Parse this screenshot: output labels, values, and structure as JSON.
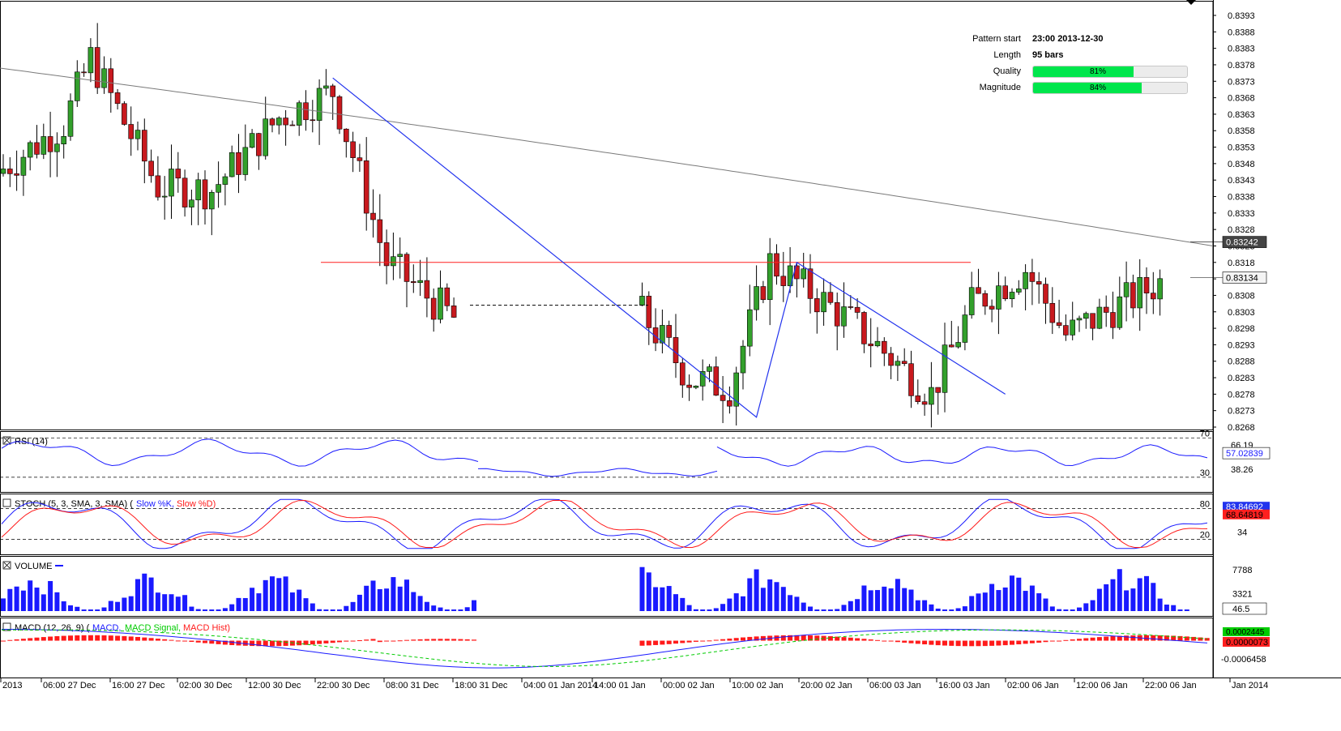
{
  "pattern_info": {
    "pattern_start_label": "Pattern start",
    "pattern_start_value": "23:00 2013-12-30",
    "length_label": "Length",
    "length_value": "95 bars",
    "quality_label": "Quality",
    "quality_text": "81%",
    "quality": 0.81,
    "magnitude_label": "Magnitude",
    "magnitude_text": "84%",
    "magnitude": 0.84
  },
  "colors": {
    "bull": "#33a02c",
    "bear": "#c8191e",
    "ma": "#7a7a7a",
    "pattern_line": "#2233ee",
    "resistance": "#ff2020",
    "rsi": "#1a1aff",
    "stoch_k": "#1a1aff",
    "stoch_d": "#ff1a1a",
    "volume": "#1a1aff",
    "macd": "#1a1aff",
    "macd_signal": "#00cc00",
    "macd_hist": "#ff1a1a"
  },
  "chart_data": [
    {
      "type": "candlestick",
      "title": "",
      "price_labels": [
        "0.8393",
        "0.8388",
        "0.8383",
        "0.8378",
        "0.8373",
        "0.8368",
        "0.8363",
        "0.8358",
        "0.8353",
        "0.8348",
        "0.8343",
        "0.8338",
        "0.8333",
        "0.8328",
        "0.8323",
        "0.8318",
        "0.8313",
        "0.8308",
        "0.8303",
        "0.8298",
        "0.8293",
        "0.8288",
        "0.8283",
        "0.8278",
        "0.8273",
        "0.8268"
      ],
      "ylim": [
        0.8266,
        0.8396
      ],
      "x_labels": [
        "2013",
        "06:00 27 Dec",
        "16:00 27 Dec",
        "02:00 30 Dec",
        "12:00 30 Dec",
        "22:00 30 Dec",
        "08:00 31 Dec",
        "18:00 31 Dec",
        "04:00 01 Jan 2014",
        "14:00 01 Jan",
        "00:00 02 Jan",
        "10:00 02 Jan",
        "20:00 02 Jan",
        "06:00 03 Jan",
        "16:00 03 Jan",
        "02:00 06 Jan",
        "12:00 06 Jan",
        "22:00 06 Jan",
        "Jan 2014"
      ],
      "ma_label": "0.83242",
      "ma_value": 0.83242,
      "last_label": "0.83134",
      "last_value": 0.83134,
      "ohlc_segments": [
        {
          "open": 0.8345,
          "high": 0.835,
          "low": 0.8344,
          "close": 0.8349,
          "bars": 10,
          "from": 0.8345,
          "to": 0.836
        },
        {
          "open": 0.836,
          "high": 0.8392,
          "low": 0.8353,
          "close": 0.838,
          "bars": 4,
          "from": 0.836,
          "to": 0.838
        },
        {
          "bars": 10,
          "from": 0.838,
          "to": 0.8341
        },
        {
          "bars": 8,
          "from": 0.8341,
          "to": 0.834
        },
        {
          "bars": 10,
          "from": 0.834,
          "to": 0.8362
        },
        {
          "bars": 8,
          "from": 0.8362,
          "to": 0.837
        },
        {
          "bars": 8,
          "from": 0.837,
          "to": 0.8318
        },
        {
          "bars": 10,
          "from": 0.8318,
          "to": 0.8301
        }
      ],
      "gap_after_bar": 70,
      "gap_before_bar": 71,
      "ohlc_segments_2": [
        {
          "bars": 8,
          "from": 0.8305,
          "to": 0.8283
        },
        {
          "bars": 6,
          "from": 0.8283,
          "to": 0.828
        },
        {
          "bars": 6,
          "from": 0.828,
          "to": 0.8318
        },
        {
          "bars": 12,
          "from": 0.8318,
          "to": 0.83
        },
        {
          "bars": 12,
          "from": 0.83,
          "to": 0.8278
        },
        {
          "bars": 6,
          "from": 0.8278,
          "to": 0.8305
        },
        {
          "bars": 8,
          "from": 0.8305,
          "to": 0.8316
        },
        {
          "bars": 6,
          "from": 0.8316,
          "to": 0.8296
        },
        {
          "bars": 14,
          "from": 0.8296,
          "to": 0.8312
        }
      ],
      "resistance_level": 0.8318,
      "pattern_points": [
        {
          "bar": 49,
          "price": 0.8374
        },
        {
          "bar": 112,
          "price": 0.8271
        },
        {
          "bar": 118,
          "price": 0.8318
        },
        {
          "bar": 149,
          "price": 0.8278
        }
      ],
      "projection_level": 0.8305,
      "ma_series": {
        "from": 0.8377,
        "to": 0.8323
      }
    },
    {
      "type": "line",
      "title": "RSI (14)",
      "levels": [
        "70",
        "30"
      ],
      "labels": [
        "66.19",
        "57.02839",
        "38.26"
      ],
      "current": 57.02839,
      "ylim": [
        20,
        72
      ]
    },
    {
      "type": "line",
      "title": "STOCH (5, 3, SMA, 3, SMA)",
      "series": [
        {
          "name": "Slow %K"
        },
        {
          "name": "Slow %D"
        }
      ],
      "levels": [
        "80",
        "20"
      ],
      "labels": [
        "83.84692",
        "68.64819",
        "34"
      ],
      "k_current": 83.84692,
      "d_current": 68.64819,
      "ylim": [
        0,
        100
      ]
    },
    {
      "type": "bar",
      "title": "VOLUME",
      "labels": [
        "7788",
        "3321",
        "46.5"
      ],
      "current": 46.5,
      "ylim": [
        0,
        9500
      ]
    },
    {
      "type": "line",
      "title": "MACD (12, 26, 9)",
      "series": [
        {
          "name": "MACD"
        },
        {
          "name": "MACD Signal"
        },
        {
          "name": "MACD Hist"
        }
      ],
      "labels": [
        "0.0002445",
        "0.0000073",
        "-0.0006458"
      ],
      "current_hist": 7.3e-06,
      "current_macd": 0.0002445,
      "ylim": [
        -0.0007,
        0.0004
      ]
    }
  ]
}
